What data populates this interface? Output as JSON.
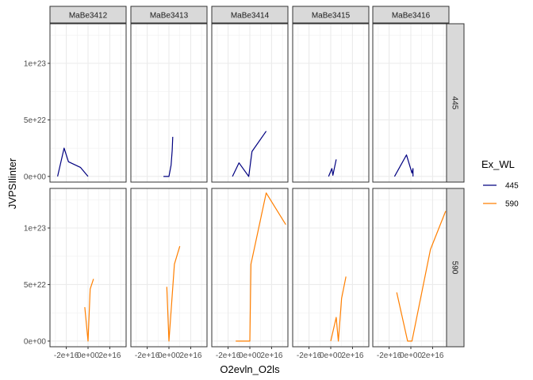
{
  "chart_data": {
    "type": "line",
    "xlabel": "O2evln_O2ls",
    "ylabel": "JVPSIlinter",
    "x_ticks": [
      {
        "value": -2e+16,
        "label": "-2e+16"
      },
      {
        "value": 0,
        "label": "0e+00"
      },
      {
        "value": 2e+16,
        "label": "2e+16"
      }
    ],
    "y_ticks": [
      {
        "value": 0,
        "label": "0e+00"
      },
      {
        "value": 5e+22,
        "label": "5e+22"
      },
      {
        "value": 1e+23,
        "label": "1e+23"
      }
    ],
    "xlim": [
      -3.5e+16,
      3.5e+16
    ],
    "ylim": [
      -5e+21,
      1.35e+23
    ],
    "grid": true,
    "facet_columns": [
      "MaBe3412",
      "MaBe3413",
      "MaBe3414",
      "MaBe3415",
      "MaBe3416"
    ],
    "facet_rows": [
      "445",
      "590"
    ],
    "legend": {
      "title": "Ex_WL",
      "position": "right",
      "entries": [
        {
          "label": "445",
          "color": "#000080"
        },
        {
          "label": "590",
          "color": "#ff7f00"
        }
      ]
    },
    "panels": [
      {
        "column": "MaBe3412",
        "row": "445",
        "points": [
          [
            -2.8e+16,
            0
          ],
          [
            -2.2e+16,
            2.5e+22
          ],
          [
            -1.8e+16,
            1.3e+22
          ],
          [
            -7000000000000000.0,
            8e+21
          ],
          [
            0,
            0
          ]
        ]
      },
      {
        "column": "MaBe3412",
        "row": "590",
        "points": [
          [
            -3000000000000000.0,
            3e+22
          ],
          [
            0,
            0
          ],
          [
            2000000000000000.0,
            4.6e+22
          ],
          [
            5000000000000000.0,
            5.5e+22
          ]
        ]
      },
      {
        "column": "MaBe3413",
        "row": "445",
        "points": [
          [
            -5000000000000000.0,
            0
          ],
          [
            0,
            0
          ],
          [
            2000000000000000.0,
            1e+22
          ],
          [
            3000000000000000.0,
            2.3e+22
          ],
          [
            3500000000000000.0,
            3.5e+22
          ]
        ]
      },
      {
        "column": "MaBe3413",
        "row": "590",
        "points": [
          [
            -2000000000000000.0,
            4.8e+22
          ],
          [
            0,
            0
          ],
          [
            5000000000000000.0,
            6.8e+22
          ],
          [
            1e+16,
            8.4e+22
          ]
        ]
      },
      {
        "column": "MaBe3414",
        "row": "445",
        "points": [
          [
            -1.6e+16,
            0
          ],
          [
            -1e+16,
            1.2e+22
          ],
          [
            -1000000000000000.0,
            0
          ],
          [
            2000000000000000.0,
            2.2e+22
          ],
          [
            1.5e+16,
            4e+22
          ]
        ]
      },
      {
        "column": "MaBe3414",
        "row": "590",
        "points": [
          [
            -1.3e+16,
            0
          ],
          [
            0,
            0
          ],
          [
            1000000000000000.0,
            6.8e+22
          ],
          [
            1.5e+16,
            1.31e+23
          ],
          [
            3.3e+16,
            1.03e+23
          ]
        ]
      },
      {
        "column": "MaBe3415",
        "row": "445",
        "points": [
          [
            -2000000000000000.0,
            0
          ],
          [
            1000000000000000.0,
            7e+21
          ],
          [
            2000000000000000.0,
            1e+21
          ],
          [
            5000000000000000.0,
            1.5e+22
          ]
        ]
      },
      {
        "column": "MaBe3415",
        "row": "590",
        "points": [
          [
            0,
            0
          ],
          [
            5000000000000000.0,
            2.1e+22
          ],
          [
            7000000000000000.0,
            0
          ],
          [
            1e+16,
            3.8e+22
          ],
          [
            1.4e+16,
            5.7e+22
          ]
        ]
      },
      {
        "column": "MaBe3416",
        "row": "445",
        "points": [
          [
            -1.5e+16,
            0
          ],
          [
            -4000000000000000.0,
            1.9e+22
          ],
          [
            1000000000000000.0,
            3e+21
          ],
          [
            2000000000000000.0,
            7e+21
          ],
          [
            2000000000000000.0,
            0
          ]
        ]
      },
      {
        "column": "MaBe3416",
        "row": "590",
        "points": [
          [
            -1.3e+16,
            4.3e+22
          ],
          [
            -3000000000000000.0,
            0
          ],
          [
            1000000000000000.0,
            0
          ],
          [
            1.8e+16,
            8.1e+22
          ],
          [
            3.2e+16,
            1.15e+23
          ]
        ]
      }
    ]
  }
}
